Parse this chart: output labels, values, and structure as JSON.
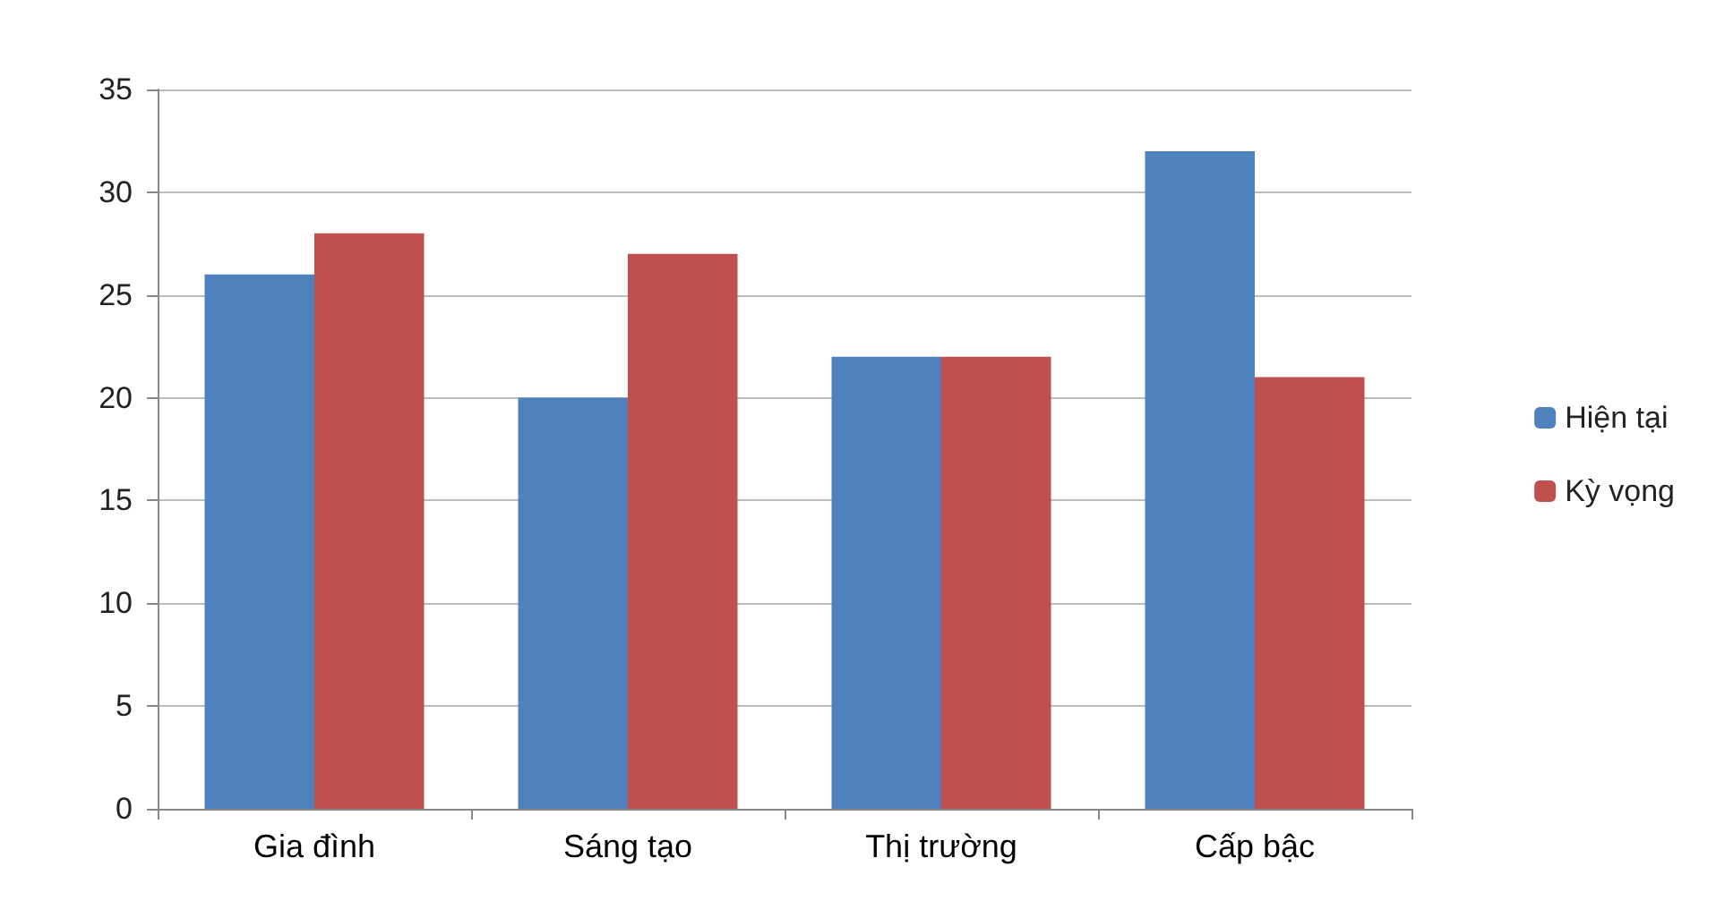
{
  "chart_data": {
    "type": "bar",
    "categories": [
      "Gia đình",
      "Sáng tạo",
      "Thị trường",
      "Cấp bậc"
    ],
    "series": [
      {
        "name": "Hiện tại",
        "color": "#4f81bd",
        "values": [
          26,
          20,
          22,
          32
        ]
      },
      {
        "name": "Kỳ vọng",
        "color": "#c0504d",
        "values": [
          28,
          27,
          22,
          21
        ]
      }
    ],
    "ylim": [
      0,
      35
    ],
    "yticks": [
      0,
      5,
      10,
      15,
      20,
      25,
      30,
      35
    ],
    "grid": "y",
    "legend": "right"
  }
}
